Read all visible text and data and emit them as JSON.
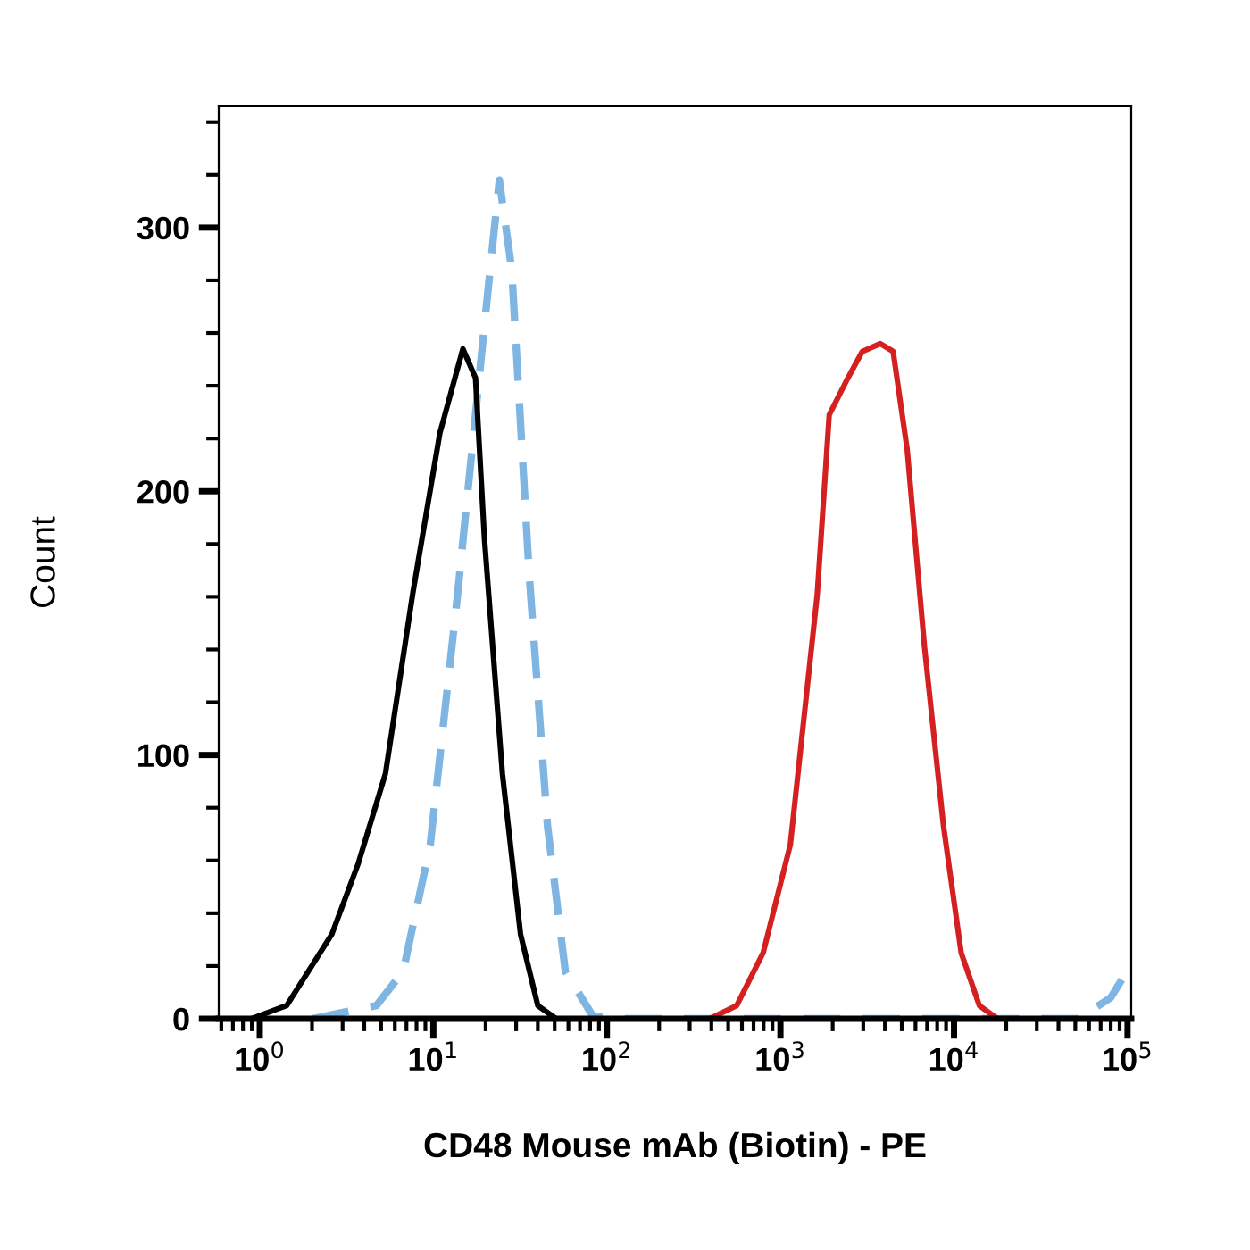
{
  "chart_data": {
    "type": "line",
    "xlabel": "CD48 Mouse mAb (Biotin) - PE",
    "ylabel": "Count",
    "log": "x",
    "xlim": [
      0.58,
      105000
    ],
    "ylim": [
      0,
      346
    ],
    "xticks": [
      {
        "value": 1,
        "label": "10$^{0}$"
      },
      {
        "value": 10,
        "label": "10$^{1}$"
      },
      {
        "value": 100,
        "label": "10$^{2}$"
      },
      {
        "value": 1000,
        "label": "10$^{3}$"
      },
      {
        "value": 10000,
        "label": "10$^{4}$"
      },
      {
        "value": 100000,
        "label": "10$^{5}$"
      }
    ],
    "yticks": [
      0,
      100,
      200,
      300
    ],
    "grid": false,
    "legend": false,
    "marker": "none",
    "series": [
      {
        "color": "#7fb5e3",
        "line_style": "dashed",
        "x": [
          2.0,
          4.7,
          6.7,
          9.6,
          13.8,
          19.7,
          24,
          28.3,
          35.7,
          45.5,
          57.6,
          83,
          118,
          52000,
          80000,
          93000
        ],
        "values": [
          0,
          5,
          18,
          66,
          161,
          263,
          318,
          284,
          168,
          73,
          18,
          1,
          0,
          0,
          8,
          15
        ]
      },
      {
        "color": "#000000",
        "line_style": "solid",
        "x": [
          0.89,
          1.43,
          2.6,
          3.7,
          5.3,
          7.6,
          10.9,
          14.8,
          17.5,
          19.7,
          25,
          31.8,
          40,
          51
        ],
        "values": [
          0,
          5,
          32,
          59,
          93,
          161,
          222,
          254,
          243,
          182,
          93,
          32,
          5,
          0
        ]
      },
      {
        "color": "#d42020",
        "line_style": "solid",
        "x": [
          390,
          560,
          795,
          1140,
          1630,
          1910,
          2450,
          2960,
          3760,
          4460,
          5370,
          6760,
          8700,
          11000,
          14000,
          17800
        ],
        "values": [
          0,
          5,
          25,
          66,
          161,
          229,
          243,
          253,
          256,
          253,
          216,
          141,
          73,
          25,
          5,
          0
        ]
      }
    ]
  }
}
